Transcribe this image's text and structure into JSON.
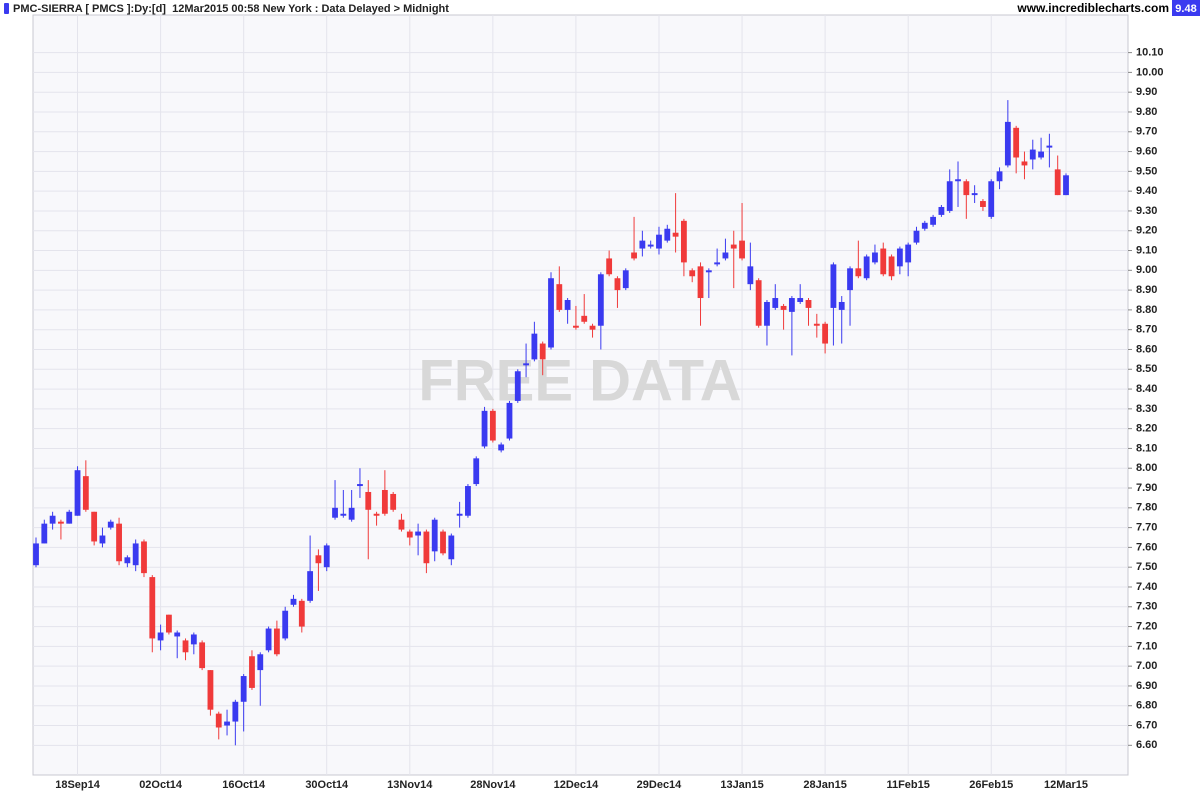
{
  "header": {
    "title": "PMC-SIERRA [ PMCS ]:Dy:[d]  12Mar2015 00:58 New York : Data Delayed > Midnight",
    "logo": "www.incrediblecharts.com"
  },
  "watermark": "FREE DATA",
  "chart_data": {
    "type": "candlestick",
    "categories": [
      null,
      null,
      null,
      null,
      null,
      "18Sep14",
      null,
      null,
      null,
      null,
      null,
      null,
      null,
      null,
      null,
      "02Oct14",
      null,
      null,
      null,
      null,
      null,
      null,
      null,
      null,
      null,
      "16Oct14",
      null,
      null,
      null,
      null,
      null,
      null,
      null,
      null,
      null,
      "30Oct14",
      null,
      null,
      null,
      null,
      null,
      null,
      null,
      null,
      null,
      "13Nov14",
      null,
      null,
      null,
      null,
      null,
      null,
      null,
      null,
      null,
      "28Nov14",
      null,
      null,
      null,
      null,
      null,
      null,
      null,
      null,
      null,
      "12Dec14",
      null,
      null,
      null,
      null,
      null,
      null,
      null,
      null,
      null,
      "29Dec14",
      null,
      null,
      null,
      null,
      null,
      null,
      null,
      null,
      null,
      "13Jan15",
      null,
      null,
      null,
      null,
      null,
      null,
      null,
      null,
      null,
      "28Jan15",
      null,
      null,
      null,
      null,
      null,
      null,
      null,
      null,
      null,
      "11Feb15",
      null,
      null,
      null,
      null,
      null,
      null,
      null,
      null,
      null,
      "26Feb15",
      null,
      null,
      null,
      null,
      null,
      null,
      null,
      null,
      "12Mar15"
    ],
    "open": [
      7.51,
      7.62,
      7.72,
      7.73,
      7.72,
      7.76,
      7.96,
      7.78,
      7.62,
      7.7,
      7.72,
      7.52,
      7.51,
      7.63,
      7.45,
      7.13,
      7.26,
      7.15,
      7.13,
      7.11,
      7.12,
      6.98,
      6.76,
      6.7,
      6.72,
      6.82,
      7.05,
      6.98,
      7.08,
      7.19,
      7.14,
      7.31,
      7.33,
      7.33,
      7.56,
      7.5,
      7.75,
      7.76,
      7.74,
      7.91,
      7.88,
      7.77,
      7.89,
      7.87,
      7.74,
      7.68,
      7.66,
      7.68,
      7.58,
      7.68,
      7.54,
      7.76,
      7.76,
      7.92,
      8.11,
      8.29,
      8.09,
      8.15,
      8.34,
      8.52,
      8.55,
      8.63,
      8.61,
      8.93,
      8.8,
      8.72,
      8.77,
      8.72,
      8.72,
      9.06,
      8.96,
      8.91,
      9.09,
      9.11,
      9.12,
      9.11,
      9.15,
      9.19,
      9.25,
      9.0,
      9.02,
      8.99,
      9.03,
      9.06,
      9.13,
      9.15,
      8.93,
      8.95,
      8.72,
      8.81,
      8.82,
      8.79,
      8.84,
      8.85,
      8.73,
      8.73,
      8.81,
      8.8,
      8.9,
      9.01,
      8.96,
      9.04,
      9.11,
      9.07,
      9.02,
      9.04,
      9.14,
      9.21,
      9.23,
      9.28,
      9.3,
      9.45,
      9.45,
      9.38,
      9.35,
      9.27,
      9.45,
      9.53,
      9.72,
      9.55,
      9.56,
      9.57,
      9.62,
      9.51,
      9.38
    ],
    "high": [
      7.65,
      7.74,
      7.78,
      7.74,
      7.79,
      8.01,
      8.04,
      7.78,
      7.7,
      7.74,
      7.75,
      7.56,
      7.64,
      7.64,
      7.46,
      7.21,
      7.26,
      7.18,
      7.14,
      7.17,
      7.13,
      6.98,
      6.77,
      6.78,
      6.83,
      6.96,
      7.08,
      7.07,
      7.2,
      7.23,
      7.3,
      7.36,
      7.34,
      7.66,
      7.59,
      7.62,
      7.94,
      7.89,
      7.89,
      8.0,
      7.94,
      7.78,
      7.99,
      7.88,
      7.77,
      7.69,
      7.72,
      7.69,
      7.75,
      7.69,
      7.67,
      7.83,
      7.92,
      8.06,
      8.31,
      8.3,
      8.13,
      8.34,
      8.5,
      8.63,
      8.74,
      8.64,
      8.99,
      9.02,
      8.86,
      8.82,
      8.88,
      8.73,
      8.99,
      9.1,
      8.97,
      9.01,
      9.27,
      9.2,
      9.15,
      9.22,
      9.23,
      9.39,
      9.26,
      9.01,
      9.04,
      9.01,
      9.11,
      9.16,
      9.2,
      9.34,
      9.14,
      8.96,
      8.85,
      8.93,
      8.83,
      8.87,
      8.93,
      8.86,
      8.78,
      8.74,
      9.04,
      8.87,
      9.02,
      9.15,
      9.08,
      9.13,
      9.14,
      9.08,
      9.12,
      9.14,
      9.22,
      9.25,
      9.28,
      9.33,
      9.51,
      9.55,
      9.46,
      9.43,
      9.36,
      9.46,
      9.52,
      9.86,
      9.73,
      9.6,
      9.66,
      9.67,
      9.69,
      9.58,
      9.49
    ],
    "low": [
      7.5,
      7.62,
      7.69,
      7.64,
      7.72,
      7.76,
      7.78,
      7.61,
      7.6,
      7.69,
      7.51,
      7.5,
      7.48,
      7.45,
      7.07,
      7.08,
      7.16,
      7.04,
      7.03,
      7.06,
      6.98,
      6.75,
      6.63,
      6.65,
      6.6,
      6.67,
      6.88,
      6.8,
      7.07,
      7.05,
      7.13,
      7.3,
      7.17,
      7.32,
      7.38,
      7.48,
      7.74,
      7.75,
      7.73,
      7.85,
      7.54,
      7.71,
      7.76,
      7.78,
      7.68,
      7.61,
      7.56,
      7.47,
      7.53,
      7.56,
      7.51,
      7.7,
      7.75,
      7.91,
      8.1,
      8.13,
      8.08,
      8.14,
      8.33,
      8.46,
      8.54,
      8.47,
      8.6,
      8.79,
      8.73,
      8.7,
      8.73,
      8.66,
      8.6,
      8.97,
      8.81,
      8.9,
      9.05,
      9.07,
      9.11,
      9.08,
      9.14,
      9.09,
      8.97,
      8.94,
      8.72,
      8.86,
      9.02,
      9.05,
      8.91,
      9.05,
      8.9,
      8.71,
      8.62,
      8.8,
      8.7,
      8.57,
      8.83,
      8.72,
      8.66,
      8.58,
      8.62,
      8.63,
      8.72,
      8.96,
      8.95,
      9.03,
      8.97,
      8.95,
      8.98,
      8.97,
      9.13,
      9.2,
      9.22,
      9.27,
      9.29,
      9.32,
      9.26,
      9.34,
      9.3,
      9.26,
      9.41,
      9.52,
      9.49,
      9.46,
      9.51,
      9.56,
      9.52,
      9.38,
      9.38
    ],
    "close": [
      7.62,
      7.72,
      7.76,
      7.72,
      7.78,
      7.99,
      7.79,
      7.63,
      7.66,
      7.73,
      7.53,
      7.55,
      7.62,
      7.47,
      7.14,
      7.17,
      7.17,
      7.17,
      7.07,
      7.16,
      6.99,
      6.78,
      6.69,
      6.72,
      6.82,
      6.95,
      6.89,
      7.06,
      7.19,
      7.06,
      7.28,
      7.34,
      7.2,
      7.48,
      7.52,
      7.61,
      7.8,
      7.77,
      7.8,
      7.92,
      7.79,
      7.76,
      7.77,
      7.79,
      7.69,
      7.65,
      7.68,
      7.52,
      7.74,
      7.57,
      7.66,
      7.77,
      7.91,
      8.05,
      8.29,
      8.14,
      8.12,
      8.33,
      8.49,
      8.53,
      8.68,
      8.55,
      8.96,
      8.8,
      8.85,
      8.71,
      8.74,
      8.7,
      8.98,
      8.98,
      8.9,
      9.0,
      9.06,
      9.15,
      9.13,
      9.18,
      9.21,
      9.17,
      9.04,
      8.97,
      8.86,
      9.0,
      9.04,
      9.09,
      9.11,
      9.06,
      9.02,
      8.72,
      8.84,
      8.86,
      8.8,
      8.86,
      8.86,
      8.81,
      8.72,
      8.63,
      9.03,
      8.84,
      9.01,
      8.97,
      9.07,
      9.09,
      8.98,
      8.97,
      9.11,
      9.13,
      9.2,
      9.24,
      9.27,
      9.32,
      9.45,
      9.46,
      9.38,
      9.39,
      9.32,
      9.45,
      9.5,
      9.75,
      9.57,
      9.53,
      9.61,
      9.6,
      9.63,
      9.38,
      9.48
    ],
    "up_color": "#3a3af0",
    "down_color": "#f03a3a",
    "ylim": [
      6.45,
      10.29
    ],
    "yticks": [
      {
        "value": 6.6,
        "label": "6.60"
      },
      {
        "value": 6.7,
        "label": "6.70"
      },
      {
        "value": 6.8,
        "label": "6.80"
      },
      {
        "value": 6.9,
        "label": "6.90"
      },
      {
        "value": 7.0,
        "label": "7.00"
      },
      {
        "value": 7.1,
        "label": "7.10"
      },
      {
        "value": 7.2,
        "label": "7.20"
      },
      {
        "value": 7.3,
        "label": "7.30"
      },
      {
        "value": 7.4,
        "label": "7.40"
      },
      {
        "value": 7.5,
        "label": "7.50"
      },
      {
        "value": 7.6,
        "label": "7.60"
      },
      {
        "value": 7.7,
        "label": "7.70"
      },
      {
        "value": 7.8,
        "label": "7.80"
      },
      {
        "value": 7.9,
        "label": "7.90"
      },
      {
        "value": 8.0,
        "label": "8.00"
      },
      {
        "value": 8.1,
        "label": "8.10"
      },
      {
        "value": 8.2,
        "label": "8.20"
      },
      {
        "value": 8.3,
        "label": "8.30"
      },
      {
        "value": 8.4,
        "label": "8.40"
      },
      {
        "value": 8.5,
        "label": "8.50"
      },
      {
        "value": 8.6,
        "label": "8.60"
      },
      {
        "value": 8.7,
        "label": "8.70"
      },
      {
        "value": 8.8,
        "label": "8.80"
      },
      {
        "value": 8.9,
        "label": "8.90"
      },
      {
        "value": 9.0,
        "label": "9.00"
      },
      {
        "value": 9.1,
        "label": "9.10"
      },
      {
        "value": 9.2,
        "label": "9.20"
      },
      {
        "value": 9.3,
        "label": "9.30"
      },
      {
        "value": 9.4,
        "label": "9.40"
      },
      {
        "value": 9.5,
        "label": "9.50"
      },
      {
        "value": 9.6,
        "label": "9.60"
      },
      {
        "value": 9.7,
        "label": "9.70"
      },
      {
        "value": 9.8,
        "label": "9.80"
      },
      {
        "value": 9.9,
        "label": "9.90"
      },
      {
        "value": 10.0,
        "label": "10.00"
      },
      {
        "value": 10.1,
        "label": "10.10"
      }
    ],
    "grid": true
  }
}
